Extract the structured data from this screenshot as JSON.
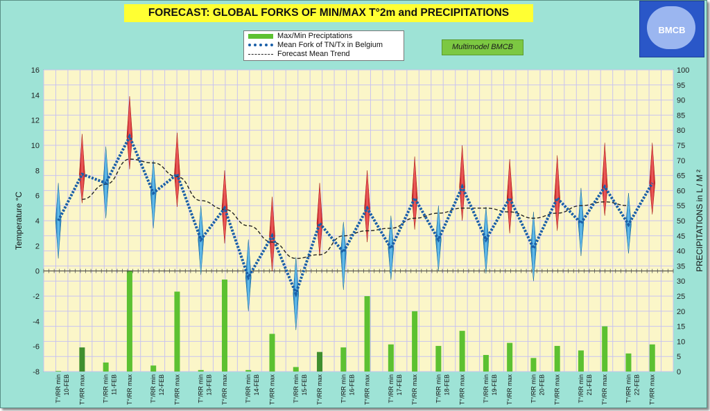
{
  "title": "FORECAST: GLOBAL FORKS OF  MIN/MAX T°2m and PRECIPITATIONS",
  "logo": {
    "label": "BMCB"
  },
  "tag": "Multimodel BMCB",
  "legend": {
    "items": [
      {
        "label": "Max/Min Preciptations",
        "kind": "bar",
        "color": "#5cc131"
      },
      {
        "label": "Mean Fork of TN/Tx in Belgium",
        "kind": "dotted",
        "color": "#1a5fa8"
      },
      {
        "label": "Forecast Mean Trend",
        "kind": "dashed",
        "color": "#222222"
      }
    ]
  },
  "chart_data": {
    "type": "line",
    "ylabel": "Temperature °C",
    "y2label": "PRECIPITATIONS in L / M ²",
    "ylim": [
      -8,
      16
    ],
    "y2lim": [
      0,
      100
    ],
    "yticks": [
      -8,
      -6,
      -4,
      -2,
      0,
      2,
      4,
      6,
      8,
      10,
      12,
      14,
      16
    ],
    "y2ticks": [
      0,
      5,
      10,
      15,
      20,
      25,
      30,
      35,
      40,
      45,
      50,
      55,
      60,
      65,
      70,
      75,
      80,
      85,
      90,
      95,
      100
    ],
    "grid": true,
    "x_labels": [
      [
        "T°/RR min",
        "10-FEB"
      ],
      [
        "T°/RR max",
        ""
      ],
      [
        "T°/RR min",
        "11-FEB"
      ],
      [
        "T°/RR max",
        ""
      ],
      [
        "T°/RR min",
        "12-FEB"
      ],
      [
        "T°/RR max",
        ""
      ],
      [
        "T°/RR min",
        "13-FEB"
      ],
      [
        "T°/RR max",
        ""
      ],
      [
        "T°/RR min",
        "14-FEB"
      ],
      [
        "T°/RR max",
        ""
      ],
      [
        "T°/RR min",
        "15-FEB"
      ],
      [
        "T°/RR max",
        ""
      ],
      [
        "T°/RR min",
        "16-FEB"
      ],
      [
        "T°/RR max",
        ""
      ],
      [
        "T°/RR min",
        "17-FEB"
      ],
      [
        "T°/RR max",
        ""
      ],
      [
        "T°/RR min",
        "18-FEB"
      ],
      [
        "T°/RR max",
        ""
      ],
      [
        "T°/RR min",
        "19-FEB"
      ],
      [
        "T°/RR max",
        ""
      ],
      [
        "T°/RR min",
        "20-FEB"
      ],
      [
        "T°/RR max",
        ""
      ],
      [
        "T°/RR min",
        "21-FEB"
      ],
      [
        "T°/RR max",
        ""
      ],
      [
        "T°/RR min",
        "22-FEB"
      ],
      [
        "T°/RR max",
        ""
      ]
    ],
    "series": [
      {
        "name": "Mean Fork of TN/Tx in Belgium",
        "values": [
          4.0,
          7.7,
          7.0,
          10.7,
          6.2,
          7.7,
          2.5,
          5.0,
          -0.5,
          2.8,
          -1.8,
          3.8,
          1.5,
          5.0,
          1.8,
          5.8,
          2.5,
          6.7,
          2.5,
          5.8,
          1.8,
          5.8,
          3.8,
          6.7,
          3.7,
          7.0
        ]
      },
      {
        "name": "Forecast Mean Trend",
        "values": [
          null,
          5.7,
          6.9,
          8.9,
          8.6,
          7.5,
          5.6,
          4.9,
          3.6,
          2.3,
          1.0,
          1.3,
          2.8,
          3.2,
          3.4,
          4.2,
          4.6,
          5.0,
          5.0,
          4.7,
          4.2,
          4.6,
          5.2,
          5.5,
          5.2,
          null
        ]
      },
      {
        "name": "Max/Min Preciptations",
        "axis": "y2",
        "values": [
          0.2,
          8.0,
          3.0,
          33.5,
          2.0,
          26.5,
          0.5,
          30.5,
          0.5,
          12.5,
          1.5,
          6.5,
          8.0,
          25.0,
          9.0,
          20.0,
          8.5,
          13.5,
          5.5,
          9.5,
          4.5,
          8.5,
          7.0,
          15.0,
          6.0,
          9.0
        ]
      }
    ],
    "fork_amplitude": [
      [
        3.0,
        3.0
      ],
      [
        3.2,
        2.3
      ],
      [
        2.9,
        2.8
      ],
      [
        3.2,
        2.6
      ],
      [
        2.6,
        2.8
      ],
      [
        3.3,
        2.6
      ],
      [
        2.7,
        2.8
      ],
      [
        3.0,
        2.8
      ],
      [
        3.0,
        2.7
      ],
      [
        3.1,
        2.8
      ],
      [
        2.9,
        2.9
      ],
      [
        3.2,
        2.6
      ],
      [
        2.4,
        3.0
      ],
      [
        3.0,
        2.7
      ],
      [
        2.6,
        2.5
      ],
      [
        3.3,
        2.5
      ],
      [
        2.7,
        2.5
      ],
      [
        3.3,
        2.7
      ],
      [
        2.6,
        2.7
      ],
      [
        3.1,
        2.8
      ],
      [
        2.9,
        2.6
      ],
      [
        3.4,
        2.6
      ],
      [
        2.8,
        2.6
      ],
      [
        3.5,
        2.3
      ],
      [
        2.5,
        2.3
      ],
      [
        3.2,
        2.5
      ]
    ],
    "colors": {
      "max_spike": "#e03030",
      "min_spike": "#2c8fd0",
      "dark_bar": "#3f8f2e",
      "bar": "#5cc131",
      "mean_line": "#1a5fa8",
      "trend_line": "#222222",
      "plot_bg": "#fbf6c8",
      "grid": "#c9c3ef"
    },
    "dark_bar_indices": [
      1,
      11
    ]
  }
}
